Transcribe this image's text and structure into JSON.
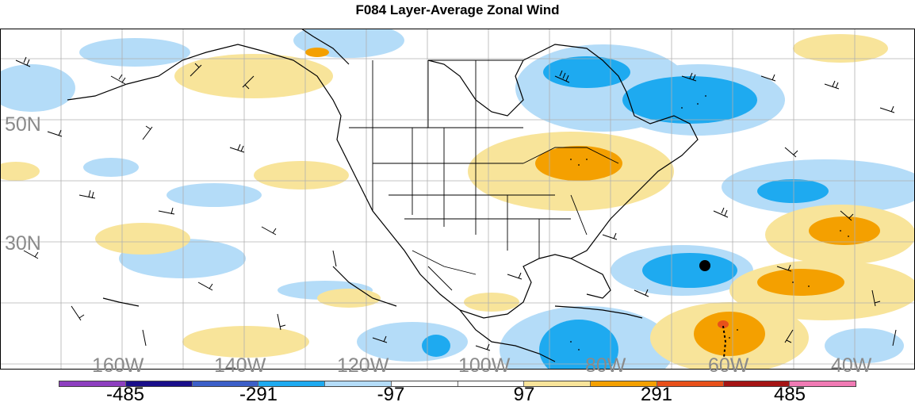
{
  "title": "F084 Layer-Average Zonal Wind",
  "lat_labels": [
    "50N",
    "30N"
  ],
  "lon_labels": [
    "160W",
    "140W",
    "120W",
    "100W",
    "80W",
    "60W",
    "40W"
  ],
  "colorbar": {
    "colors": [
      "#8e3fc0",
      "#1a0f8a",
      "#3c5fc8",
      "#1eaaf0",
      "#b4dcf8",
      "#ffffff",
      "#ffffff",
      "#f8e49a",
      "#f4a000",
      "#e8501a",
      "#a51414",
      "#f07ab4"
    ],
    "labels": [
      "-485",
      "-291",
      "-97",
      "97",
      "291",
      "485"
    ]
  },
  "colors": {
    "land_outline": "#000000",
    "grid": "#b0b0b0",
    "light_blue": "#b4dcf8",
    "mid_blue": "#1eaaf0",
    "light_yellow": "#f8e49a",
    "orange": "#f4a000",
    "red": "#e8501a"
  }
}
